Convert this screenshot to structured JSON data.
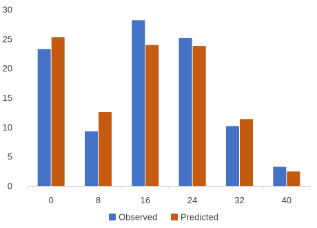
{
  "chart_data": {
    "type": "bar",
    "categories": [
      "0",
      "8",
      "16",
      "24",
      "32",
      "40"
    ],
    "series": [
      {
        "name": "Observed",
        "color": "#4472C4",
        "values": [
          23.3,
          9.3,
          28.2,
          25.2,
          10.2,
          3.3
        ]
      },
      {
        "name": "Predicted",
        "color": "#C55A11",
        "values": [
          25.3,
          12.6,
          24.0,
          23.8,
          11.4,
          2.5
        ]
      }
    ],
    "title": "",
    "xlabel": "",
    "ylabel": "",
    "ylim": [
      0,
      30
    ],
    "yticks": [
      0,
      5,
      10,
      15,
      20,
      25,
      30
    ],
    "grid": false,
    "legend_position": "bottom"
  }
}
